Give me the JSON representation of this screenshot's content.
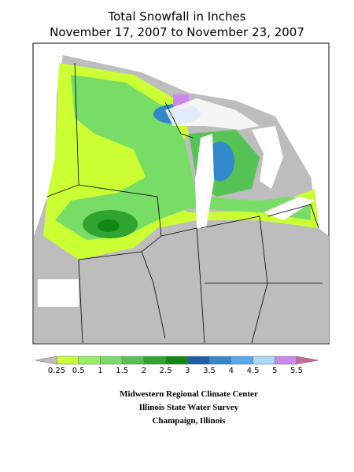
{
  "title": [
    "Total Snowfall in Inches",
    "November 17, 2007 to November 23, 2007"
  ],
  "legend": {
    "labels": [
      0.25,
      0.5,
      1,
      1.5,
      2,
      2.5,
      3,
      3.5,
      4,
      4.5,
      5,
      5.5
    ],
    "colors": [
      "#bdbdbd",
      "#ccff33",
      "#99ee66",
      "#77dd66",
      "#55c455",
      "#2fa52f",
      "#118811",
      "#1f5fa8",
      "#3388cc",
      "#55aaee",
      "#aad8f8",
      "#cc88ee",
      "#c86a9a"
    ]
  },
  "credits": [
    "Midwestern Regional Climate Center",
    "Illinois State Water Survey",
    "Champaign, Illinois"
  ]
}
